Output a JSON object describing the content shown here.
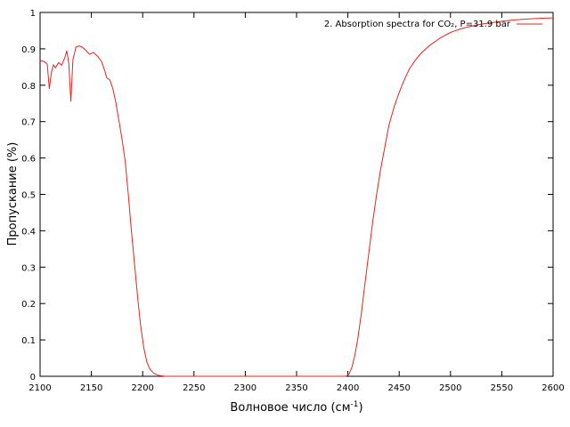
{
  "chart_data": {
    "type": "line",
    "title": "",
    "xlabel": "Волновое число (см",
    "xlabel_sup": "-1",
    "xlabel_suffix": ")",
    "ylabel": "Пропускание (%)",
    "xlim": [
      2100,
      2600
    ],
    "ylim": [
      0,
      1
    ],
    "xticks": [
      2100,
      2150,
      2200,
      2250,
      2300,
      2350,
      2400,
      2450,
      2500,
      2550,
      2600
    ],
    "yticks": [
      0,
      0.1,
      0.2,
      0.3,
      0.4,
      0.5,
      0.6,
      0.7,
      0.8,
      0.9,
      1
    ],
    "ytick_labels": [
      "0",
      "0.1",
      "0.2",
      "0.3",
      "0.4",
      "0.5",
      "0.6",
      "0.7",
      "0.8",
      "0.9",
      "1"
    ],
    "grid": false,
    "legend_position": "top-right",
    "series": [
      {
        "name": "2. Absorption spectra for CO₂, P=31.9 bar",
        "color": "#e8231c",
        "points": [
          [
            2100,
            0.868
          ],
          [
            2104,
            0.865
          ],
          [
            2107,
            0.858
          ],
          [
            2109,
            0.79
          ],
          [
            2111,
            0.835
          ],
          [
            2113,
            0.856
          ],
          [
            2115,
            0.848
          ],
          [
            2118,
            0.862
          ],
          [
            2121,
            0.855
          ],
          [
            2124,
            0.875
          ],
          [
            2126,
            0.895
          ],
          [
            2128,
            0.86
          ],
          [
            2130,
            0.755
          ],
          [
            2132,
            0.87
          ],
          [
            2135,
            0.905
          ],
          [
            2138,
            0.908
          ],
          [
            2141,
            0.905
          ],
          [
            2145,
            0.895
          ],
          [
            2148,
            0.885
          ],
          [
            2152,
            0.89
          ],
          [
            2156,
            0.88
          ],
          [
            2160,
            0.865
          ],
          [
            2163,
            0.84
          ],
          [
            2165,
            0.82
          ],
          [
            2168,
            0.815
          ],
          [
            2171,
            0.79
          ],
          [
            2174,
            0.75
          ],
          [
            2177,
            0.7
          ],
          [
            2180,
            0.65
          ],
          [
            2183,
            0.59
          ],
          [
            2186,
            0.5
          ],
          [
            2189,
            0.4
          ],
          [
            2192,
            0.31
          ],
          [
            2195,
            0.22
          ],
          [
            2198,
            0.14
          ],
          [
            2201,
            0.08
          ],
          [
            2204,
            0.04
          ],
          [
            2207,
            0.02
          ],
          [
            2211,
            0.008
          ],
          [
            2216,
            0.002
          ],
          [
            2222,
            0
          ],
          [
            2300,
            0
          ],
          [
            2398,
            0
          ],
          [
            2401,
            0.005
          ],
          [
            2404,
            0.025
          ],
          [
            2407,
            0.06
          ],
          [
            2410,
            0.11
          ],
          [
            2413,
            0.17
          ],
          [
            2416,
            0.24
          ],
          [
            2420,
            0.33
          ],
          [
            2424,
            0.42
          ],
          [
            2428,
            0.5
          ],
          [
            2432,
            0.57
          ],
          [
            2436,
            0.63
          ],
          [
            2440,
            0.69
          ],
          [
            2445,
            0.74
          ],
          [
            2450,
            0.78
          ],
          [
            2455,
            0.815
          ],
          [
            2460,
            0.845
          ],
          [
            2466,
            0.87
          ],
          [
            2472,
            0.89
          ],
          [
            2480,
            0.91
          ],
          [
            2490,
            0.93
          ],
          [
            2500,
            0.945
          ],
          [
            2510,
            0.955
          ],
          [
            2520,
            0.962
          ],
          [
            2530,
            0.968
          ],
          [
            2540,
            0.972
          ],
          [
            2550,
            0.976
          ],
          [
            2560,
            0.979
          ],
          [
            2570,
            0.981
          ],
          [
            2580,
            0.983
          ],
          [
            2590,
            0.984
          ],
          [
            2600,
            0.985
          ]
        ]
      }
    ]
  }
}
